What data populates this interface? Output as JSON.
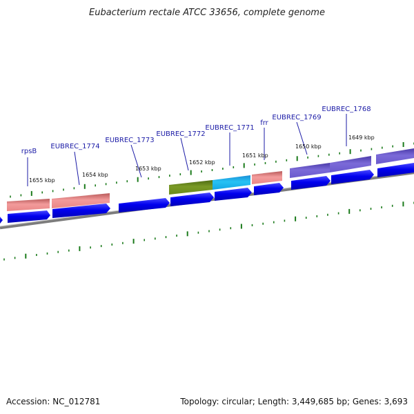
{
  "title": "Eubacterium rectale ATCC 33656, complete genome",
  "footer": {
    "accession": "Accession: NC_012781",
    "summary": "Topology: circular; Length: 3,449,685 bp; Genes: 3,693"
  },
  "gene_labels": [
    "rpsB",
    "EUBREC_1774",
    "EUBREC_1773",
    "EUBREC_1772",
    "EUBREC_1771",
    "frr",
    "EUBREC_1769",
    "EUBREC_1768"
  ],
  "kbp_labels": [
    "1655 kbp",
    "1654 kbp",
    "1653 kbp",
    "1652 kbp",
    "1651 kbp",
    "1650 kbp",
    "1649 kbp"
  ],
  "colors": {
    "cds_arrow": "#0000e8",
    "track_salmon": "#ee8a8a",
    "track_olive": "#6e8c1e",
    "track_cyan": "#19b6ee",
    "track_purple": "#6a5acd",
    "backbone": "#8a8a8a",
    "tick": "#1a7a1a",
    "label": "#1a1aa6"
  }
}
